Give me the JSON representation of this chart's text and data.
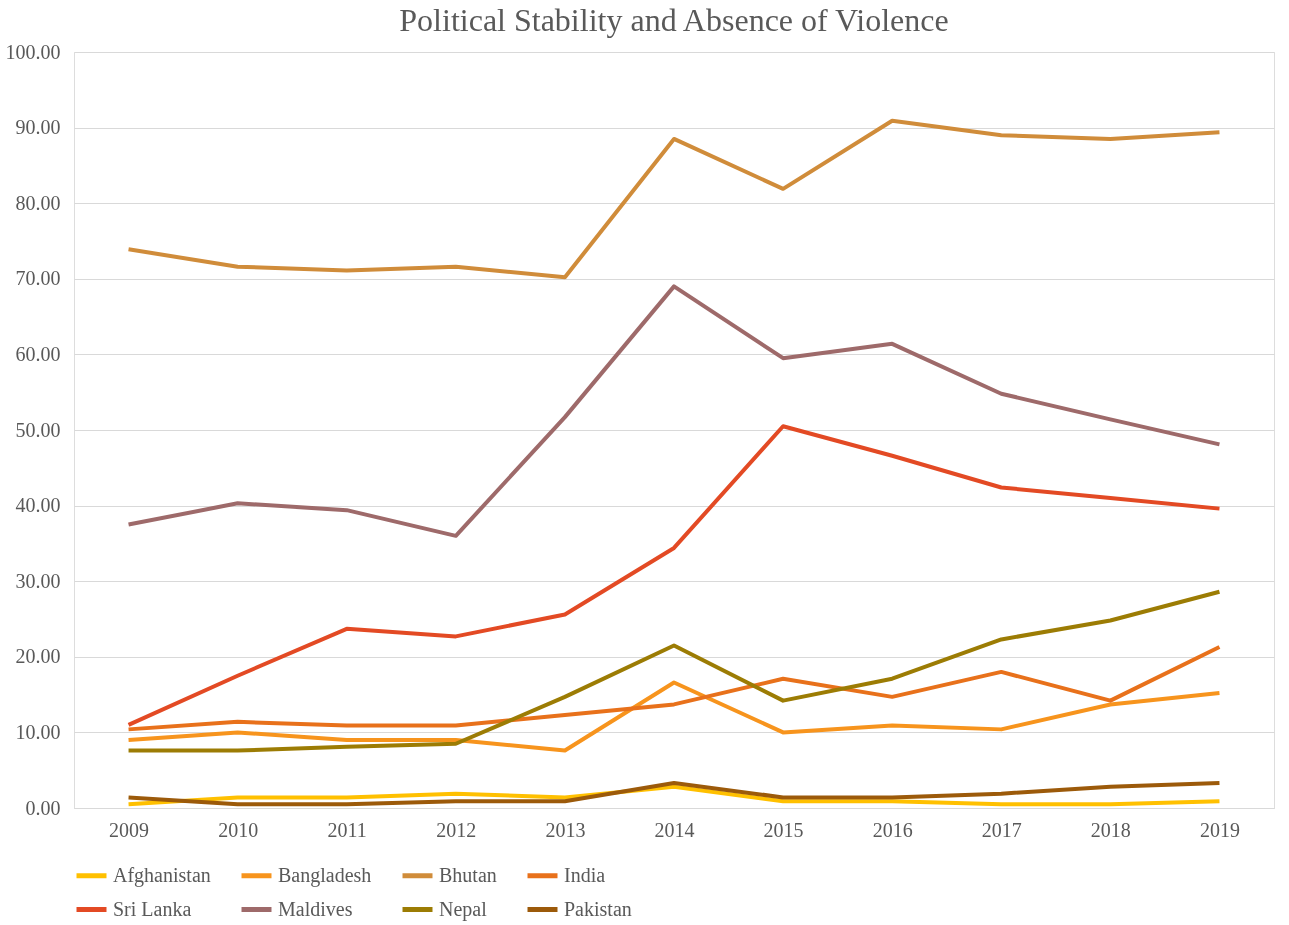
{
  "chart_data": {
    "type": "line",
    "title": "Political Stability and Absence of Violence",
    "categories": [
      "2009",
      "2010",
      "2011",
      "2012",
      "2013",
      "2014",
      "2015",
      "2016",
      "2017",
      "2018",
      "2019"
    ],
    "series": [
      {
        "name": "Afghanistan",
        "color": "#ffc000",
        "values": [
          0.5,
          1.4,
          1.4,
          1.9,
          1.4,
          2.8,
          0.9,
          0.9,
          0.5,
          0.5,
          0.9
        ]
      },
      {
        "name": "Bangladesh",
        "color": "#f7941d",
        "values": [
          9.0,
          10.0,
          9.0,
          9.0,
          7.6,
          16.6,
          10.0,
          10.9,
          10.4,
          13.7,
          15.2
        ]
      },
      {
        "name": "Bhutan",
        "color": "#d08c3a",
        "values": [
          73.9,
          71.6,
          71.1,
          71.6,
          70.2,
          88.5,
          81.9,
          90.9,
          89.0,
          88.5,
          89.4
        ]
      },
      {
        "name": "India",
        "color": "#e8711b",
        "values": [
          10.4,
          11.4,
          10.9,
          10.9,
          12.3,
          13.7,
          17.1,
          14.7,
          18.0,
          14.2,
          21.3
        ]
      },
      {
        "name": "Sri Lanka",
        "color": "#e34a24",
        "values": [
          11.0,
          17.5,
          23.7,
          22.7,
          25.6,
          34.4,
          50.5,
          46.6,
          42.4,
          41.0,
          39.6
        ]
      },
      {
        "name": "Maldives",
        "color": "#9e6a6a",
        "values": [
          37.5,
          40.3,
          39.4,
          36.0,
          51.7,
          69.0,
          59.5,
          61.4,
          54.8,
          51.4,
          48.1
        ]
      },
      {
        "name": "Nepal",
        "color": "#9c7c04",
        "values": [
          7.6,
          7.6,
          8.1,
          8.5,
          14.7,
          21.5,
          14.2,
          17.1,
          22.3,
          24.8,
          28.6
        ]
      },
      {
        "name": "Pakistan",
        "color": "#9c5a0a",
        "values": [
          1.4,
          0.5,
          0.5,
          0.9,
          0.9,
          3.3,
          1.4,
          1.4,
          1.9,
          2.8,
          3.3
        ]
      }
    ],
    "ylim": [
      0,
      100
    ],
    "yticks": [
      {
        "value": 0,
        "label": "0.00"
      },
      {
        "value": 10,
        "label": "10.00"
      },
      {
        "value": 20,
        "label": "20.00"
      },
      {
        "value": 30,
        "label": "30.00"
      },
      {
        "value": 40,
        "label": "40.00"
      },
      {
        "value": 50,
        "label": "50.00"
      },
      {
        "value": 60,
        "label": "60.00"
      },
      {
        "value": 70,
        "label": "70.00"
      },
      {
        "value": 80,
        "label": "80.00"
      },
      {
        "value": 90,
        "label": "90.00"
      },
      {
        "value": 100,
        "label": "100.00"
      }
    ],
    "grid": "y",
    "legend": "bottom",
    "marker": "none",
    "line_style": "solid"
  }
}
